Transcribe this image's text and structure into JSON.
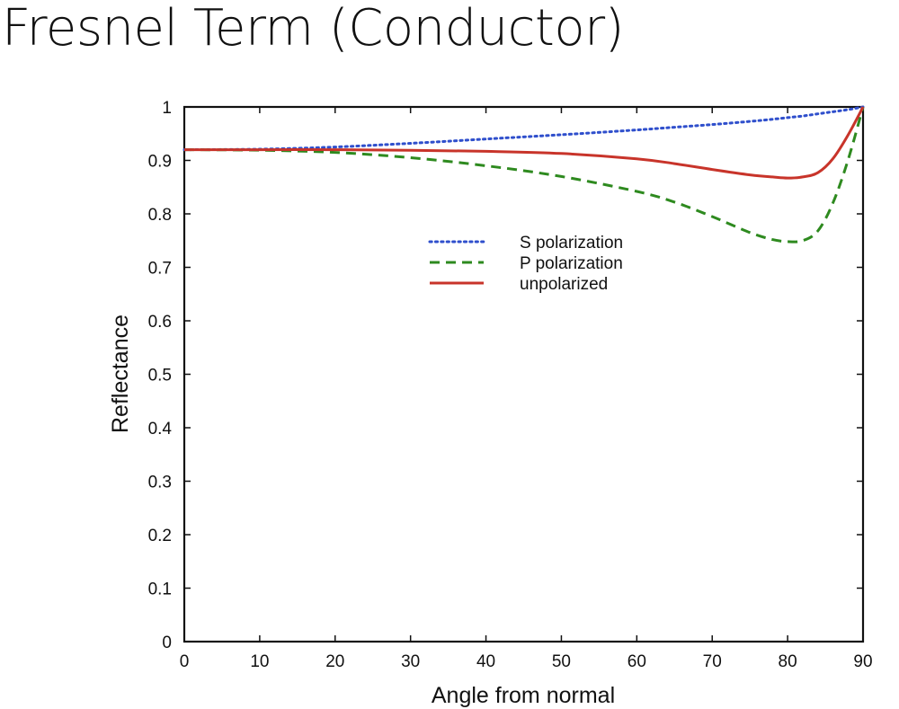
{
  "slide": {
    "title": "Fresnel Term (Conductor)"
  },
  "chart_data": {
    "type": "line",
    "title": "",
    "xlabel": "Angle from normal",
    "ylabel": "Reflectance",
    "xlim": [
      0,
      90
    ],
    "ylim": [
      0,
      1
    ],
    "xticks": [
      "0",
      "10",
      "20",
      "30",
      "40",
      "50",
      "60",
      "70",
      "80",
      "90"
    ],
    "yticks": [
      "0",
      "0.1",
      "0.2",
      "0.3",
      "0.4",
      "0.5",
      "0.6",
      "0.7",
      "0.8",
      "0.9",
      "1"
    ],
    "grid": false,
    "legend_position": "upper-center",
    "x": [
      0,
      10,
      20,
      30,
      40,
      50,
      60,
      65,
      70,
      75,
      78,
      80,
      82,
      84,
      86,
      88,
      90
    ],
    "series": [
      {
        "name": "S polarization",
        "style": "dotted",
        "color": "#2f4fcc",
        "values": [
          0.92,
          0.921,
          0.925,
          0.932,
          0.94,
          0.948,
          0.957,
          0.962,
          0.967,
          0.973,
          0.977,
          0.98,
          0.983,
          0.987,
          0.991,
          0.995,
          1.0
        ]
      },
      {
        "name": "P polarization",
        "style": "dashed",
        "color": "#2e8a1f",
        "values": [
          0.92,
          0.919,
          0.915,
          0.905,
          0.89,
          0.87,
          0.842,
          0.822,
          0.795,
          0.765,
          0.752,
          0.748,
          0.75,
          0.768,
          0.82,
          0.9,
          1.0
        ]
      },
      {
        "name": "unpolarized",
        "style": "solid",
        "color": "#c8342a",
        "values": [
          0.92,
          0.92,
          0.92,
          0.919,
          0.917,
          0.913,
          0.903,
          0.894,
          0.883,
          0.873,
          0.869,
          0.867,
          0.869,
          0.877,
          0.903,
          0.947,
          1.0
        ]
      }
    ]
  }
}
